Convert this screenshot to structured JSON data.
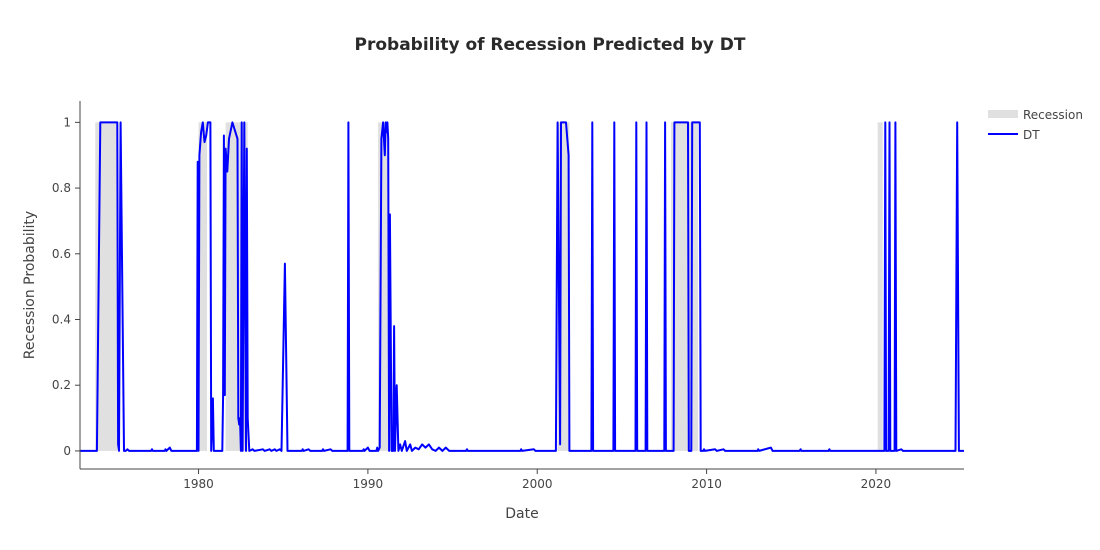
{
  "chart_data": {
    "type": "line",
    "title": "Probability of Recession Predicted by DT",
    "xlabel": "Date",
    "ylabel": "Recession Probability",
    "xlim": [
      1973.0,
      2025.2
    ],
    "ylim": [
      -0.055,
      1.065
    ],
    "x_ticks": [
      1980,
      1990,
      2000,
      2010,
      2020
    ],
    "x_tick_labels": [
      "1980",
      "1990",
      "2000",
      "2010",
      "2020"
    ],
    "y_ticks": [
      0,
      0.2,
      0.4,
      0.6,
      0.8,
      1
    ],
    "y_tick_labels": [
      "0",
      "0.2",
      "0.4",
      "0.6",
      "0.8",
      "1"
    ],
    "grid": false,
    "legend_position": "top-right",
    "colors": {
      "recession": "#e0e0e0",
      "dt": "#0000ff",
      "axis": "#444444"
    },
    "recession_periods": [
      [
        1973.9,
        1975.2
      ],
      [
        1980.0,
        1980.5
      ],
      [
        1981.6,
        1982.9
      ],
      [
        1990.6,
        1991.2
      ],
      [
        2001.2,
        2001.9
      ],
      [
        2007.9,
        2009.5
      ],
      [
        2020.1,
        2020.4
      ]
    ],
    "series": [
      {
        "name": "Recession",
        "type": "area"
      },
      {
        "name": "DT",
        "type": "line",
        "points": [
          [
            1973.0,
            0
          ],
          [
            1974.0,
            0
          ],
          [
            1974.1,
            0.5
          ],
          [
            1974.2,
            1
          ],
          [
            1975.2,
            1
          ],
          [
            1975.25,
            0.02
          ],
          [
            1975.3,
            0
          ],
          [
            1975.4,
            1
          ],
          [
            1975.5,
            0.5
          ],
          [
            1975.6,
            0
          ],
          [
            1975.7,
            0
          ],
          [
            1975.8,
            0.005
          ],
          [
            1975.9,
            0
          ],
          [
            1977.2,
            0
          ],
          [
            1977.25,
            0.005
          ],
          [
            1977.3,
            0
          ],
          [
            1978.0,
            0
          ],
          [
            1978.05,
            0.005
          ],
          [
            1978.1,
            0
          ],
          [
            1978.3,
            0.01
          ],
          [
            1978.4,
            0
          ],
          [
            1979.9,
            0
          ],
          [
            1979.95,
            0.88
          ],
          [
            1980.0,
            0
          ],
          [
            1980.05,
            0.9
          ],
          [
            1980.15,
            0.97
          ],
          [
            1980.25,
            1
          ],
          [
            1980.35,
            0.94
          ],
          [
            1980.45,
            0.96
          ],
          [
            1980.55,
            1
          ],
          [
            1980.7,
            1
          ],
          [
            1980.75,
            0
          ],
          [
            1980.85,
            0.16
          ],
          [
            1980.9,
            0
          ],
          [
            1981.4,
            0
          ],
          [
            1981.45,
            0.17
          ],
          [
            1981.5,
            0.96
          ],
          [
            1981.55,
            0.17
          ],
          [
            1981.6,
            0.92
          ],
          [
            1981.7,
            0.85
          ],
          [
            1981.8,
            0.95
          ],
          [
            1982.0,
            1
          ],
          [
            1982.3,
            0.95
          ],
          [
            1982.35,
            0.1
          ],
          [
            1982.4,
            0.08
          ],
          [
            1982.45,
            0.1
          ],
          [
            1982.5,
            0
          ],
          [
            1982.55,
            1
          ],
          [
            1982.6,
            0
          ],
          [
            1982.7,
            1
          ],
          [
            1982.8,
            0
          ],
          [
            1982.85,
            0.92
          ],
          [
            1982.9,
            0.1
          ],
          [
            1983.0,
            0
          ],
          [
            1983.2,
            0.005
          ],
          [
            1983.3,
            0
          ],
          [
            1983.8,
            0.005
          ],
          [
            1983.9,
            0
          ],
          [
            1984.2,
            0.005
          ],
          [
            1984.3,
            0
          ],
          [
            1984.5,
            0.005
          ],
          [
            1984.6,
            0
          ],
          [
            1984.8,
            0.005
          ],
          [
            1984.9,
            0
          ],
          [
            1985.1,
            0.57
          ],
          [
            1985.25,
            0
          ],
          [
            1986.1,
            0
          ],
          [
            1986.15,
            0.005
          ],
          [
            1986.2,
            0
          ],
          [
            1986.5,
            0.005
          ],
          [
            1986.6,
            0
          ],
          [
            1987.3,
            0
          ],
          [
            1987.35,
            0.005
          ],
          [
            1987.4,
            0
          ],
          [
            1987.8,
            0.005
          ],
          [
            1987.9,
            0
          ],
          [
            1988.8,
            0
          ],
          [
            1988.85,
            1
          ],
          [
            1988.9,
            0
          ],
          [
            1989.7,
            0
          ],
          [
            1989.75,
            0.005
          ],
          [
            1989.8,
            0
          ],
          [
            1990.0,
            0.01
          ],
          [
            1990.1,
            0
          ],
          [
            1990.5,
            0
          ],
          [
            1990.55,
            0.01
          ],
          [
            1990.6,
            0
          ],
          [
            1990.7,
            0.01
          ],
          [
            1990.8,
            0.95
          ],
          [
            1990.9,
            1
          ],
          [
            1991.0,
            0.9
          ],
          [
            1991.05,
            1
          ],
          [
            1991.1,
            0.97
          ],
          [
            1991.15,
            1
          ],
          [
            1991.2,
            0.95
          ],
          [
            1991.25,
            0
          ],
          [
            1991.3,
            0.72
          ],
          [
            1991.4,
            0
          ],
          [
            1991.5,
            0
          ],
          [
            1991.55,
            0.38
          ],
          [
            1991.6,
            0
          ],
          [
            1991.7,
            0.2
          ],
          [
            1991.8,
            0
          ],
          [
            1991.9,
            0.02
          ],
          [
            1992.0,
            0
          ],
          [
            1992.2,
            0.03
          ],
          [
            1992.3,
            0
          ],
          [
            1992.5,
            0.02
          ],
          [
            1992.6,
            0
          ],
          [
            1992.8,
            0.01
          ],
          [
            1993.0,
            0.005
          ],
          [
            1993.2,
            0.02
          ],
          [
            1993.4,
            0.01
          ],
          [
            1993.6,
            0.02
          ],
          [
            1993.8,
            0.005
          ],
          [
            1994.0,
            0
          ],
          [
            1994.2,
            0.01
          ],
          [
            1994.4,
            0
          ],
          [
            1994.6,
            0.01
          ],
          [
            1994.8,
            0
          ],
          [
            1995.8,
            0
          ],
          [
            1995.85,
            0.005
          ],
          [
            1995.9,
            0
          ],
          [
            1999.0,
            0
          ],
          [
            1999.05,
            0.005
          ],
          [
            1999.1,
            0
          ],
          [
            1999.8,
            0.005
          ],
          [
            1999.9,
            0
          ],
          [
            2001.1,
            0
          ],
          [
            2001.2,
            1
          ],
          [
            2001.35,
            0.02
          ],
          [
            2001.4,
            1
          ],
          [
            2001.7,
            1
          ],
          [
            2001.85,
            0.9
          ],
          [
            2001.9,
            0
          ],
          [
            2003.2,
            0
          ],
          [
            2003.25,
            1
          ],
          [
            2003.3,
            0
          ],
          [
            2004.5,
            0
          ],
          [
            2004.55,
            1
          ],
          [
            2004.6,
            0
          ],
          [
            2005.8,
            0
          ],
          [
            2005.85,
            1
          ],
          [
            2005.9,
            0
          ],
          [
            2006.4,
            0
          ],
          [
            2006.45,
            1
          ],
          [
            2006.5,
            0
          ],
          [
            2007.5,
            0
          ],
          [
            2007.55,
            1
          ],
          [
            2007.6,
            0
          ],
          [
            2008.05,
            0
          ],
          [
            2008.1,
            1
          ],
          [
            2008.9,
            1
          ],
          [
            2008.95,
            0
          ],
          [
            2009.1,
            0
          ],
          [
            2009.15,
            1
          ],
          [
            2009.6,
            1
          ],
          [
            2009.65,
            0
          ],
          [
            2009.8,
            0
          ],
          [
            2009.85,
            0.005
          ],
          [
            2009.9,
            0
          ],
          [
            2010.5,
            0.005
          ],
          [
            2010.6,
            0
          ],
          [
            2011.0,
            0.005
          ],
          [
            2011.1,
            0
          ],
          [
            2013.0,
            0
          ],
          [
            2013.05,
            0.005
          ],
          [
            2013.1,
            0
          ],
          [
            2013.8,
            0.01
          ],
          [
            2013.9,
            0
          ],
          [
            2015.5,
            0
          ],
          [
            2015.55,
            0.005
          ],
          [
            2015.6,
            0
          ],
          [
            2017.2,
            0
          ],
          [
            2017.25,
            0.005
          ],
          [
            2017.3,
            0
          ],
          [
            2020.5,
            0
          ],
          [
            2020.55,
            1
          ],
          [
            2020.6,
            0
          ],
          [
            2020.75,
            0
          ],
          [
            2020.8,
            1
          ],
          [
            2020.85,
            0
          ],
          [
            2021.1,
            0
          ],
          [
            2021.15,
            1
          ],
          [
            2021.2,
            0
          ],
          [
            2021.5,
            0.005
          ],
          [
            2021.6,
            0
          ],
          [
            2024.7,
            0
          ],
          [
            2024.8,
            1
          ],
          [
            2024.9,
            0
          ],
          [
            2025.2,
            0
          ]
        ]
      }
    ]
  }
}
